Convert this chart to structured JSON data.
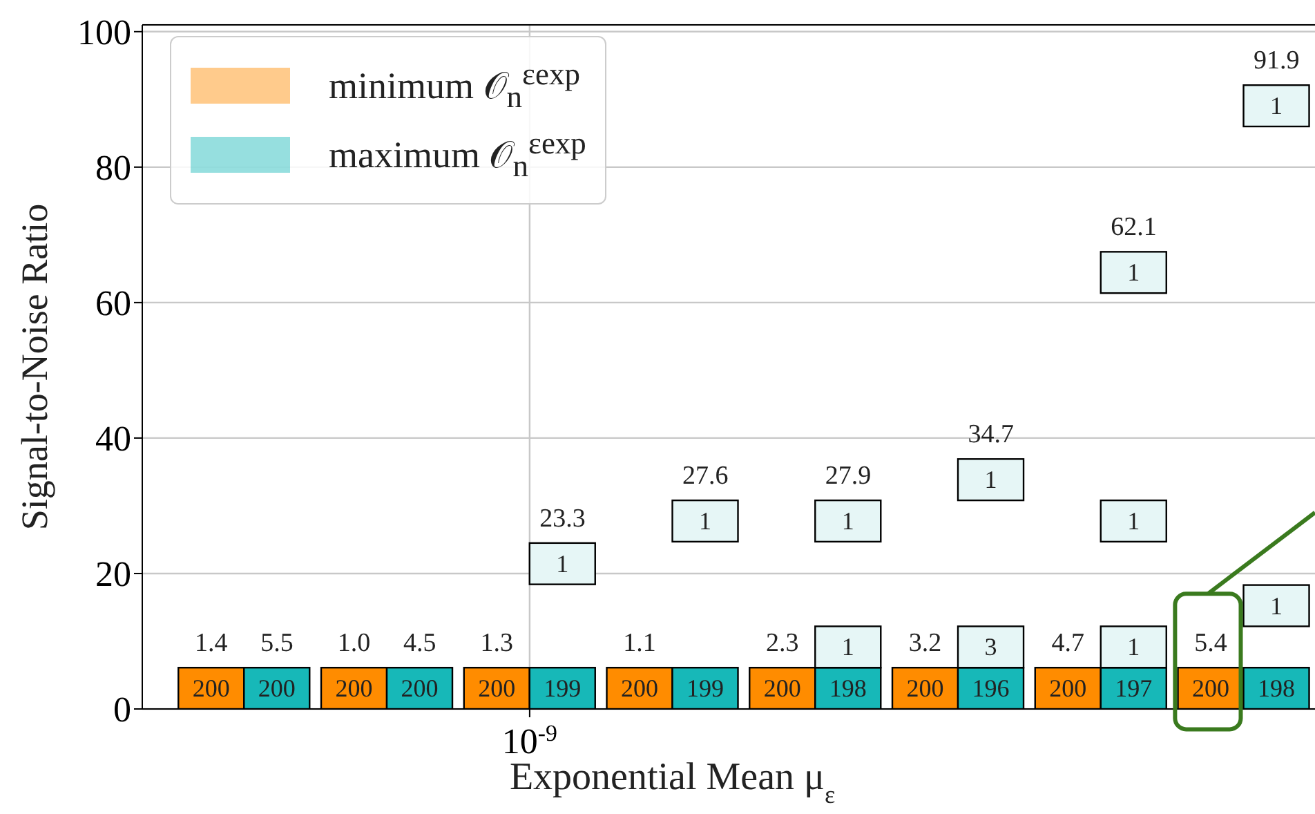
{
  "chart_data": {
    "type": "bar",
    "xlabel": "Exponential Mean μ$_{ε}$",
    "ylabel": "Signal-to-Noise Ratio",
    "categories": [
      null,
      null,
      "10$^{-9}$",
      null,
      null,
      null,
      null,
      null
    ],
    "series": [
      {
        "name": "minimum 𝒪$_{n}$$^{εexp}$",
        "color": "#ff8c00",
        "base": [
          0,
          0,
          0,
          0,
          0,
          0,
          0,
          0
        ],
        "values": [
          6.1,
          6.1,
          6.1,
          6.1,
          6.1,
          6.1,
          6.1,
          6.1
        ]
      },
      {
        "name": "maximum 𝒪$_{n}$$^{εexp}$",
        "color": "#17b8b8",
        "base": [
          0,
          0,
          0,
          0,
          0,
          0,
          0,
          0
        ],
        "values": [
          6.1,
          6.1,
          6.1,
          6.1,
          6.1,
          6.1,
          6.1,
          6.1
        ]
      },
      {
        "color": "#e6f6f6",
        "base": [
          null,
          null,
          null,
          null,
          6.1,
          6.1,
          6.1,
          12.2
        ],
        "values": [
          null,
          null,
          null,
          null,
          6.1,
          6.1,
          6.1,
          6.1
        ]
      },
      {
        "color": "#e6f6f6",
        "base": [
          null,
          null,
          18.4,
          24.7,
          24.7,
          30.8,
          24.7,
          null
        ],
        "values": [
          null,
          null,
          6.1,
          6.1,
          6.1,
          6.1,
          6.1,
          null
        ]
      },
      {
        "color": "#e6f6f6",
        "base": [
          null,
          null,
          null,
          null,
          null,
          null,
          61.4,
          86.0
        ],
        "values": [
          null,
          null,
          null,
          null,
          null,
          null,
          6.1,
          6.1
        ]
      }
    ],
    "annotations": [
      "1.4",
      "5.5",
      "1.0",
      "4.5",
      "1.3",
      "23.3",
      "1.1",
      "27.6",
      "2.3",
      "27.9",
      "3.2",
      "34.7",
      "4.7",
      "62.1",
      "5.4",
      "91.9",
      "200",
      "200",
      "200",
      "200",
      "200",
      "200",
      "200",
      "200",
      "200",
      "200",
      "199",
      "199",
      "198",
      "196",
      "197",
      "198",
      "1",
      "3",
      "1",
      "1",
      "1",
      "1",
      "1",
      "1",
      "1",
      "1",
      "1"
    ],
    "ylim": [
      0,
      101
    ],
    "yticks": [
      0,
      20,
      40,
      60,
      80,
      100
    ],
    "grid": true,
    "legend": "top left"
  }
}
